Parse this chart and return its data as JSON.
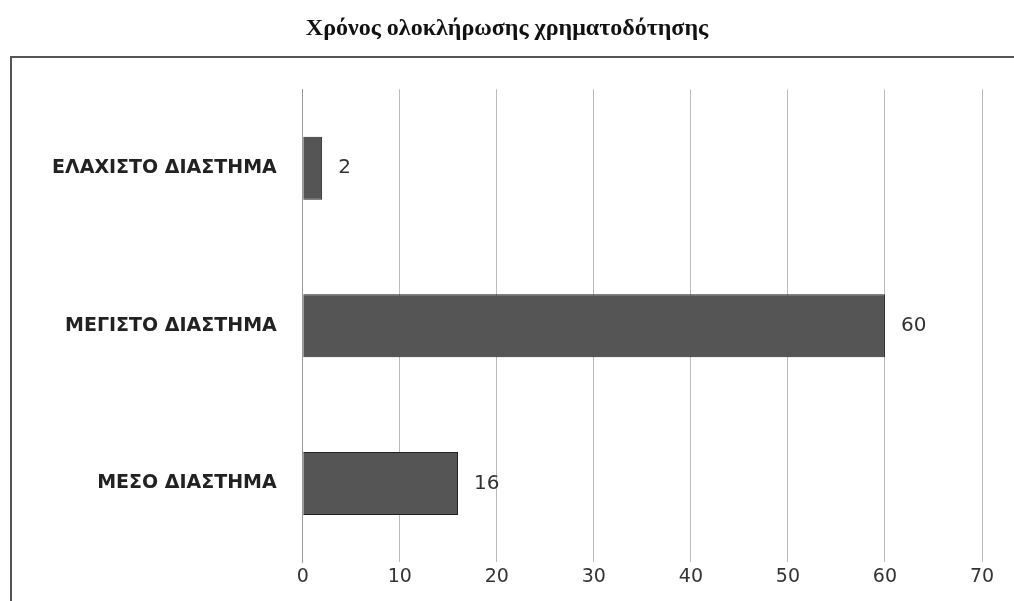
{
  "chart_data": {
    "type": "bar",
    "orientation": "horizontal",
    "title": "Χρόνος ολοκλήρωσης χρηματοδότησης",
    "categories": [
      "ΕΛΑΧΙΣΤΟ ΔΙΑΣΤΗΜΑ",
      "ΜΕΓΙΣΤΟ ΔΙΑΣΤΗΜΑ",
      "ΜΕΣΟ ΔΙΑΣΤΗΜΑ"
    ],
    "values": [
      2,
      60,
      16
    ],
    "color": "#555555",
    "xlim": [
      0,
      70
    ],
    "xticks": [
      0,
      10,
      20,
      30,
      40,
      50,
      60,
      70
    ],
    "grid": "x",
    "data_labels": true,
    "legend": false
  }
}
